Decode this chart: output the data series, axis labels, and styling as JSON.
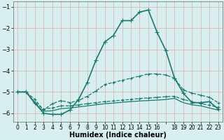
{
  "xlabel": "Humidex (Indice chaleur)",
  "xlim": [
    -0.5,
    23.5
  ],
  "ylim": [
    -6.4,
    -0.75
  ],
  "yticks": [
    -6,
    -5,
    -4,
    -3,
    -2,
    -1
  ],
  "xtick_labels": [
    "0",
    "1",
    "2",
    "3",
    "4",
    "5",
    "6",
    "7",
    "8",
    "9",
    "10",
    "11",
    "12",
    "13",
    "14",
    "15",
    "16",
    "",
    "18",
    "19",
    "20",
    "21",
    "22",
    "23"
  ],
  "xtick_positions": [
    0,
    1,
    2,
    3,
    4,
    5,
    6,
    7,
    8,
    9,
    10,
    11,
    12,
    13,
    14,
    15,
    16,
    17,
    18,
    19,
    20,
    21,
    22,
    23
  ],
  "background_color": "#d8efef",
  "grid_color": "#dbb8b8",
  "line_color": "#1a7a6e",
  "series": [
    {
      "x": [
        0,
        1,
        2,
        3,
        4,
        5,
        6,
        7,
        8,
        9,
        10,
        11,
        12,
        13,
        14,
        15,
        16,
        17,
        18,
        19,
        20,
        21,
        22,
        23
      ],
      "y": [
        -5.0,
        -5.0,
        -5.5,
        -6.0,
        -6.05,
        -6.05,
        -5.85,
        -5.35,
        -4.55,
        -3.5,
        -2.65,
        -2.35,
        -1.65,
        -1.65,
        -1.25,
        -1.15,
        -2.2,
        -3.05,
        -4.35,
        -5.05,
        -5.5,
        -5.5,
        -5.45,
        -5.8
      ],
      "linewidth": 1.2,
      "linestyle": "-",
      "marker": "+",
      "markersize": 4
    },
    {
      "x": [
        0,
        1,
        2,
        3,
        4,
        5,
        6,
        7,
        8,
        9,
        10,
        11,
        12,
        13,
        14,
        15,
        16,
        17,
        18,
        19,
        20,
        21,
        22,
        23
      ],
      "y": [
        -5.0,
        -5.0,
        -5.35,
        -5.85,
        -5.55,
        -5.4,
        -5.5,
        -5.4,
        -5.2,
        -4.95,
        -4.65,
        -4.55,
        -4.45,
        -4.35,
        -4.25,
        -4.15,
        -4.15,
        -4.2,
        -4.35,
        -4.9,
        -5.05,
        -5.15,
        -5.25,
        -5.5
      ],
      "linewidth": 0.9,
      "linestyle": "--",
      "marker": "+",
      "markersize": 3
    },
    {
      "x": [
        0,
        1,
        2,
        3,
        4,
        5,
        6,
        7,
        8,
        9,
        10,
        11,
        12,
        13,
        14,
        15,
        16,
        17,
        18,
        19,
        20,
        21,
        22,
        23
      ],
      "y": [
        -5.0,
        -5.0,
        -5.5,
        -5.8,
        -5.75,
        -5.65,
        -5.65,
        -5.6,
        -5.55,
        -5.5,
        -5.45,
        -5.42,
        -5.38,
        -5.35,
        -5.3,
        -5.28,
        -5.25,
        -5.22,
        -5.2,
        -5.35,
        -5.45,
        -5.55,
        -5.62,
        -5.72
      ],
      "linewidth": 0.9,
      "linestyle": "--",
      "marker": "+",
      "markersize": 3
    },
    {
      "x": [
        0,
        1,
        2,
        3,
        4,
        5,
        6,
        7,
        8,
        9,
        10,
        11,
        12,
        13,
        14,
        15,
        16,
        17,
        18,
        19,
        20,
        21,
        22,
        23
      ],
      "y": [
        -5.0,
        -5.0,
        -5.55,
        -5.9,
        -5.88,
        -5.78,
        -5.75,
        -5.7,
        -5.65,
        -5.6,
        -5.55,
        -5.52,
        -5.48,
        -5.45,
        -5.42,
        -5.4,
        -5.38,
        -5.35,
        -5.3,
        -5.5,
        -5.6,
        -5.65,
        -5.75,
        -5.85
      ],
      "linewidth": 0.9,
      "linestyle": "-",
      "marker": null,
      "markersize": 0
    }
  ]
}
